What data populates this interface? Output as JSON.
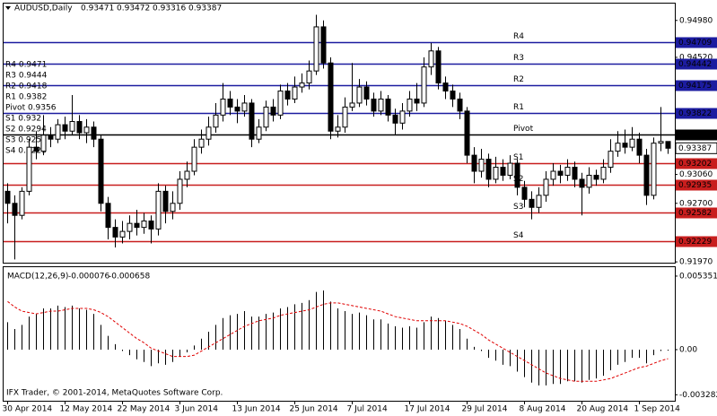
{
  "chart_data": {
    "type": "candlestick",
    "title": "AUDUSD,Daily",
    "categories": [
      "30 Apr 2014",
      null,
      null,
      null,
      null,
      null,
      null,
      null,
      "12 May 2014",
      null,
      null,
      null,
      null,
      null,
      null,
      null,
      "22 May 2014",
      null,
      null,
      null,
      null,
      null,
      null,
      null,
      "3 Jun 2014",
      null,
      null,
      null,
      null,
      null,
      null,
      null,
      "13 Jun 2014",
      null,
      null,
      null,
      null,
      null,
      null,
      null,
      "25 Jun 2014",
      null,
      null,
      null,
      null,
      null,
      null,
      null,
      "7 Jul 2014",
      null,
      null,
      null,
      null,
      null,
      null,
      null,
      "17 Jul 2014",
      null,
      null,
      null,
      null,
      null,
      null,
      null,
      "29 Jul 2014",
      null,
      null,
      null,
      null,
      null,
      null,
      null,
      "8 Aug 2014",
      null,
      null,
      null,
      null,
      null,
      null,
      null,
      "20 Aug 2014",
      null,
      null,
      null,
      null,
      null,
      null,
      null,
      "1 Sep 2014",
      null,
      null,
      null,
      null
    ],
    "candles": {
      "open": [
        0.9285,
        0.927,
        0.9255,
        0.9285,
        0.934,
        0.9335,
        0.9355,
        0.935,
        0.9368,
        0.936,
        0.9372,
        0.9358,
        0.9365,
        0.935,
        0.927,
        0.924,
        0.9228,
        0.9235,
        0.9245,
        0.924,
        0.9248,
        0.9238,
        0.9285,
        0.926,
        0.927,
        0.93,
        0.931,
        0.934,
        0.935,
        0.9365,
        0.938,
        0.94,
        0.939,
        0.9385,
        0.9395,
        0.935,
        0.9365,
        0.939,
        0.938,
        0.941,
        0.94,
        0.9415,
        0.942,
        0.9435,
        0.949,
        0.9445,
        0.936,
        0.9365,
        0.939,
        0.9395,
        0.9415,
        0.94,
        0.9385,
        0.94,
        0.938,
        0.937,
        0.9385,
        0.94,
        0.9395,
        0.944,
        0.946,
        0.942,
        0.941,
        0.94,
        0.9385,
        0.933,
        0.931,
        0.9325,
        0.93,
        0.9315,
        0.9305,
        0.932,
        0.929,
        0.9275,
        0.9265,
        0.928,
        0.93,
        0.931,
        0.9305,
        0.9315,
        0.93,
        0.929,
        0.9305,
        0.93,
        0.9315,
        0.9335,
        0.9345,
        0.934,
        0.935,
        0.933,
        0.928,
        0.9345,
        0.93471
      ],
      "high": [
        0.9295,
        0.928,
        0.929,
        0.935,
        0.936,
        0.938,
        0.9365,
        0.9375,
        0.9378,
        0.9405,
        0.938,
        0.9375,
        0.9372,
        0.9355,
        0.9278,
        0.925,
        0.9248,
        0.9255,
        0.9262,
        0.9258,
        0.9255,
        0.9295,
        0.9292,
        0.9285,
        0.931,
        0.9322,
        0.935,
        0.9362,
        0.9378,
        0.9395,
        0.942,
        0.941,
        0.94,
        0.9405,
        0.94,
        0.9375,
        0.9398,
        0.94,
        0.9418,
        0.942,
        0.9428,
        0.9432,
        0.9448,
        0.9505,
        0.9498,
        0.9452,
        0.938,
        0.9402,
        0.9445,
        0.9425,
        0.9422,
        0.9408,
        0.941,
        0.9405,
        0.9388,
        0.9395,
        0.941,
        0.942,
        0.9452,
        0.947,
        0.9465,
        0.9428,
        0.9418,
        0.9408,
        0.939,
        0.934,
        0.9338,
        0.9332,
        0.9328,
        0.9325,
        0.933,
        0.9325,
        0.9298,
        0.9285,
        0.929,
        0.931,
        0.932,
        0.9318,
        0.9325,
        0.9322,
        0.9308,
        0.9315,
        0.9312,
        0.9325,
        0.935,
        0.936,
        0.9362,
        0.9365,
        0.9358,
        0.9338,
        0.9352,
        0.939,
        0.93472
      ],
      "low": [
        0.9245,
        0.92,
        0.925,
        0.928,
        0.9325,
        0.933,
        0.934,
        0.9345,
        0.935,
        0.9355,
        0.935,
        0.9345,
        0.934,
        0.926,
        0.9225,
        0.9215,
        0.922,
        0.9225,
        0.923,
        0.9232,
        0.922,
        0.923,
        0.9245,
        0.925,
        0.9262,
        0.929,
        0.9305,
        0.9332,
        0.9342,
        0.9358,
        0.9372,
        0.938,
        0.937,
        0.9378,
        0.934,
        0.9345,
        0.936,
        0.9372,
        0.9375,
        0.9392,
        0.9395,
        0.9408,
        0.9412,
        0.943,
        0.9438,
        0.935,
        0.9352,
        0.9358,
        0.9385,
        0.939,
        0.9392,
        0.9378,
        0.938,
        0.9372,
        0.9355,
        0.9362,
        0.9378,
        0.9385,
        0.939,
        0.943,
        0.9412,
        0.94,
        0.939,
        0.9375,
        0.932,
        0.9295,
        0.9302,
        0.929,
        0.9295,
        0.9298,
        0.93,
        0.928,
        0.9265,
        0.925,
        0.9258,
        0.9272,
        0.9292,
        0.9295,
        0.9298,
        0.929,
        0.9255,
        0.9282,
        0.9292,
        0.9295,
        0.9308,
        0.9328,
        0.9332,
        0.9335,
        0.932,
        0.9268,
        0.9275,
        0.9335,
        0.93316
      ],
      "close": [
        0.927,
        0.9255,
        0.9285,
        0.934,
        0.9335,
        0.9355,
        0.935,
        0.9368,
        0.936,
        0.9372,
        0.9358,
        0.9365,
        0.935,
        0.927,
        0.924,
        0.9228,
        0.9235,
        0.9245,
        0.924,
        0.9248,
        0.9238,
        0.9285,
        0.926,
        0.927,
        0.93,
        0.931,
        0.934,
        0.935,
        0.9365,
        0.938,
        0.94,
        0.939,
        0.9385,
        0.9395,
        0.935,
        0.9365,
        0.939,
        0.938,
        0.941,
        0.94,
        0.9415,
        0.942,
        0.9435,
        0.949,
        0.9445,
        0.936,
        0.9365,
        0.939,
        0.9395,
        0.9415,
        0.94,
        0.9385,
        0.94,
        0.938,
        0.937,
        0.9385,
        0.94,
        0.9395,
        0.944,
        0.946,
        0.942,
        0.941,
        0.94,
        0.9385,
        0.933,
        0.931,
        0.9325,
        0.93,
        0.9315,
        0.9305,
        0.932,
        0.929,
        0.9275,
        0.9265,
        0.928,
        0.93,
        0.931,
        0.9305,
        0.9315,
        0.93,
        0.929,
        0.9305,
        0.93,
        0.9315,
        0.9335,
        0.9345,
        0.934,
        0.935,
        0.933,
        0.928,
        0.9345,
        0.93471,
        0.93387
      ]
    },
    "ylim": [
      0.9196,
      0.9519
    ],
    "yticks": [
      {
        "value": 0.9498,
        "label": "0.94980"
      },
      {
        "value": 0.9452,
        "label": "0.94520"
      },
      {
        "value": 0.9306,
        "label": "0.93060"
      },
      {
        "value": 0.927,
        "label": "0.92700"
      },
      {
        "value": 0.9197,
        "label": "0.91970"
      }
    ],
    "levels": [
      {
        "name": "R4",
        "value": 0.94709,
        "color": "#1c1ca0"
      },
      {
        "name": "R3",
        "value": 0.94442,
        "color": "#1c1ca0"
      },
      {
        "name": "R2",
        "value": 0.94175,
        "color": "#1c1ca0"
      },
      {
        "name": "R1",
        "value": 0.93822,
        "color": "#1c1ca0"
      },
      {
        "name": "Pivot",
        "value": 0.93555,
        "color": "#000000"
      },
      {
        "name": "S1",
        "value": 0.93202,
        "color": "#c81e1e"
      },
      {
        "name": "S2",
        "value": 0.92935,
        "color": "#c81e1e"
      },
      {
        "name": "S3",
        "value": 0.92582,
        "color": "#c81e1e"
      },
      {
        "name": "S4",
        "value": 0.92229,
        "color": "#c81e1e"
      }
    ],
    "level_label_color": "#b03030",
    "level_notes": [
      "R4 0.9471",
      "R3 0.9444",
      "R2 0.9418",
      "R1 0.9382",
      "Pivot 0.9356",
      "S1 0.932",
      "S2 0.9294",
      "S3 0.9258",
      "S4 0.9223"
    ],
    "macd": {
      "title": "MACD(12,26,9)",
      "histogram": [
        0.002,
        0.0015,
        0.0018,
        0.0024,
        0.0026,
        0.003,
        0.003,
        0.0032,
        0.0031,
        0.0032,
        0.003,
        0.0029,
        0.0026,
        0.0018,
        0.001,
        0.0004,
        -0.0001,
        -0.0004,
        -0.0007,
        -0.0009,
        -0.0012,
        -0.001,
        -0.0011,
        -0.0009,
        -0.0005,
        -0.0002,
        0.0003,
        0.0008,
        0.0013,
        0.0018,
        0.0023,
        0.0025,
        0.0026,
        0.0028,
        0.0024,
        0.0024,
        0.0026,
        0.0027,
        0.003,
        0.0031,
        0.0033,
        0.0034,
        0.0036,
        0.0042,
        0.0043,
        0.0035,
        0.003,
        0.0028,
        0.0026,
        0.0027,
        0.0025,
        0.0022,
        0.0022,
        0.0019,
        0.0017,
        0.0016,
        0.0017,
        0.0016,
        0.002,
        0.0024,
        0.0023,
        0.0021,
        0.0018,
        0.0015,
        0.0008,
        0.0002,
        -0.0001,
        -0.0006,
        -0.0008,
        -0.0011,
        -0.0012,
        -0.0016,
        -0.002,
        -0.0024,
        -0.0026,
        -0.0026,
        -0.0025,
        -0.0025,
        -0.0023,
        -0.0023,
        -0.0024,
        -0.0022,
        -0.0021,
        -0.0019,
        -0.0015,
        -0.0011,
        -0.0009,
        -0.0006,
        -0.0006,
        -0.001,
        -0.0004,
        -0.0001,
        -7.6e-05
      ],
      "signal": [
        0.0035,
        0.0031,
        0.0028,
        0.0027,
        0.0026,
        0.0027,
        0.0028,
        0.0028,
        0.0029,
        0.003,
        0.003,
        0.003,
        0.0029,
        0.0027,
        0.0024,
        0.002,
        0.0016,
        0.0012,
        0.0008,
        0.0005,
        0.0001,
        -0.0001,
        -0.0003,
        -0.0005,
        -0.0005,
        -0.0005,
        -0.0004,
        -0.0001,
        0.0002,
        0.0005,
        0.0008,
        0.0011,
        0.0014,
        0.0017,
        0.0019,
        0.0021,
        0.0022,
        0.0023,
        0.0025,
        0.0026,
        0.0027,
        0.0028,
        0.0029,
        0.0031,
        0.0033,
        0.0034,
        0.0034,
        0.0033,
        0.0032,
        0.0031,
        0.003,
        0.0029,
        0.0028,
        0.0026,
        0.0024,
        0.0023,
        0.0022,
        0.0021,
        0.0021,
        0.0021,
        0.0021,
        0.0021,
        0.002,
        0.0019,
        0.0017,
        0.0014,
        0.0011,
        0.0007,
        0.0004,
        0.0001,
        -0.0002,
        -0.0005,
        -0.0008,
        -0.0011,
        -0.0014,
        -0.0017,
        -0.0019,
        -0.0021,
        -0.0022,
        -0.0023,
        -0.0023,
        -0.0023,
        -0.0023,
        -0.0022,
        -0.0021,
        -0.0019,
        -0.0017,
        -0.0015,
        -0.0013,
        -0.0012,
        -0.001,
        -0.0008,
        -0.000658
      ],
      "signal_color": "#e00000",
      "ylim": [
        -0.00372,
        0.006
      ],
      "yticks": [
        0.005351,
        {
          "value": 0,
          "label": "0.00"
        },
        -0.003282
      ]
    },
    "footer": "IFX Trader, © 2001-2014, MetaQuotes Software Corp."
  }
}
